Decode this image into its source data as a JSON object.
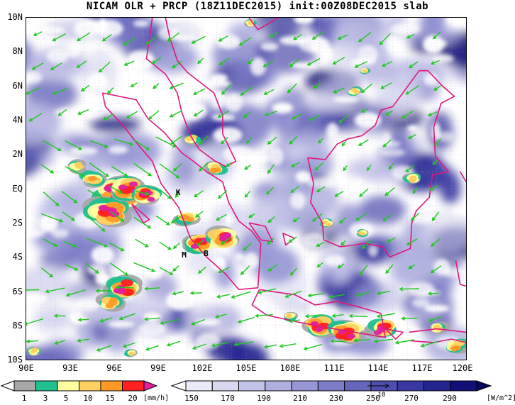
{
  "title": "NICAM OLR + PRCP (18Z11DEC2015) init:00Z08DEC2015 slab",
  "colors": {
    "coast": "#e0187a",
    "wind": "#1ec81e",
    "olr_scale": [
      "#ffffff",
      "#eaeaf8",
      "#d8d8f0",
      "#c4c4e8",
      "#b0b0e0",
      "#9696d4",
      "#7e7ec8",
      "#6666bc",
      "#4e4eb0",
      "#3838a0",
      "#242490",
      "#101078"
    ],
    "prcp_scale": [
      "#ffffff",
      "#a8a8a8",
      "#20c090",
      "#ffffa0",
      "#ffd060",
      "#ff9a28",
      "#ff2020",
      "#e020a0"
    ]
  },
  "map": {
    "lon_range": [
      90,
      120
    ],
    "lat_range": [
      -10,
      10
    ],
    "lat_ticks": [
      "10N",
      "8N",
      "6N",
      "4N",
      "2N",
      "EQ",
      "2S",
      "4S",
      "6S",
      "8S",
      "10S"
    ],
    "lon_ticks": [
      "90E",
      "93E",
      "96E",
      "99E",
      "102E",
      "105E",
      "108E",
      "111E",
      "114E",
      "117E",
      "120E"
    ],
    "place_labels": [
      {
        "text": "K",
        "lon": 100.4,
        "lat": -0.25
      },
      {
        "text": "M",
        "lon": 100.8,
        "lat": -3.9
      },
      {
        "text": "B",
        "lon": 102.3,
        "lat": -3.8
      }
    ]
  },
  "precip_colorbar": {
    "labels": [
      "1",
      "3",
      "5",
      "10",
      "15",
      "20"
    ],
    "unit": "[mm/h]"
  },
  "olr_colorbar": {
    "labels": [
      "150",
      "170",
      "190",
      "210",
      "230",
      "250",
      "270",
      "290"
    ],
    "unit": "[W/m^2]",
    "vector_ref": "10"
  }
}
